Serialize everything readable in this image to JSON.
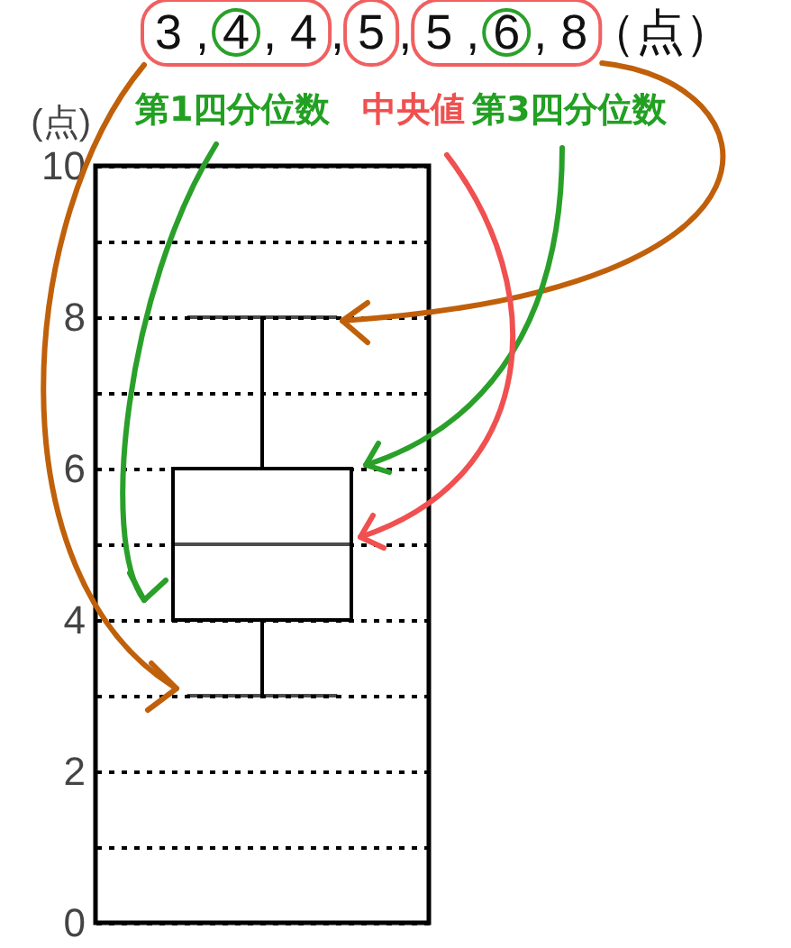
{
  "chart_data": {
    "type": "box",
    "ylabel": "(点)",
    "categories": [
      null
    ],
    "boxes": [
      {
        "low": 3,
        "q1": 4,
        "median": 5,
        "q3": 6,
        "high": 8
      }
    ],
    "ylim": [
      0,
      10
    ],
    "yticks": [
      0,
      {
        "value": 1,
        "label": null
      },
      2,
      {
        "value": 3,
        "label": null
      },
      4,
      {
        "value": 5,
        "label": null
      },
      6,
      {
        "value": 7,
        "label": null
      },
      8,
      {
        "value": 9,
        "label": null
      },
      10
    ],
    "grid": "y",
    "tick_labels": "y",
    "annotations": [
      "3 , 4 , 4 , 5 , 5 , 6 , 8（点）",
      "第1四分位数",
      "中央値",
      "第3四分位数"
    ]
  }
}
